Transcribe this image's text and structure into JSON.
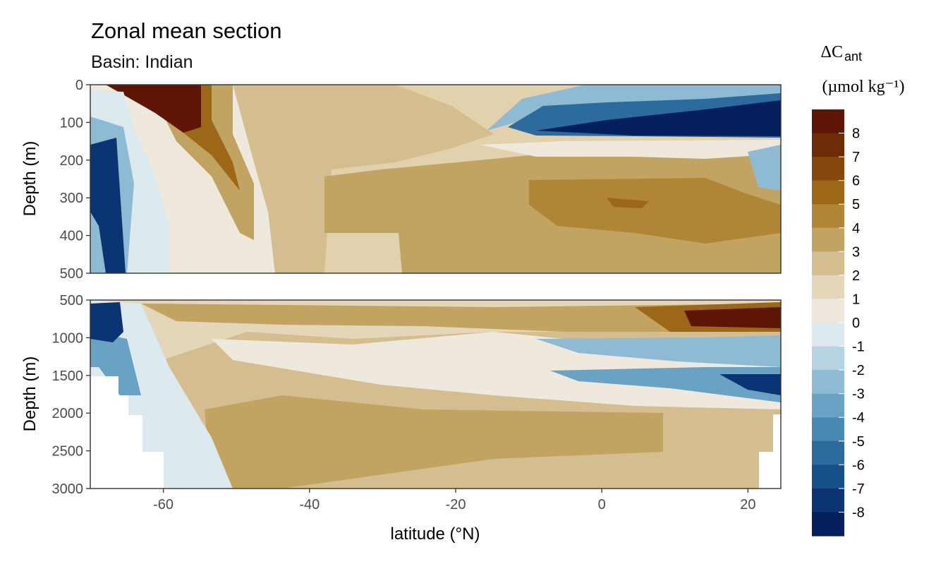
{
  "chart_data": {
    "type": "heatmap",
    "title": "Zonal mean section",
    "subtitle": "Basin: Indian",
    "xlabel": "latitude (°N)",
    "ylabel": "Depth (m)",
    "xlim": [
      -70,
      24.5
    ],
    "x_ticks": [
      -60,
      -40,
      -20,
      0,
      20
    ],
    "x_tick_labels": [
      "-60",
      "-40",
      "-20",
      "0",
      "20"
    ],
    "panels": [
      {
        "name": "upper",
        "ylim": [
          0,
          500
        ],
        "y_ticks": [
          0,
          100,
          200,
          300,
          400,
          500
        ],
        "y_tick_labels": [
          "0",
          "100",
          "200",
          "300",
          "400",
          "500"
        ],
        "features": [
          {
            "lat": [
              -70,
              -54
            ],
            "depth": [
              0,
              200
            ],
            "value": 8.5
          },
          {
            "lat": [
              -62,
              -45
            ],
            "depth": [
              0,
              380
            ],
            "value": 4.5
          },
          {
            "lat": [
              -70,
              -64
            ],
            "depth": [
              120,
              500
            ],
            "value": -8
          },
          {
            "lat": [
              -8,
              24.5
            ],
            "depth": [
              20,
              130
            ],
            "value": -8
          },
          {
            "lat": [
              -30,
              24.5
            ],
            "depth": [
              220,
              500
            ],
            "value": 3.5
          },
          {
            "lat": [
              0,
              22
            ],
            "depth": [
              240,
              440
            ],
            "value": 4.5
          },
          {
            "lat": [
              18,
              24.5
            ],
            "depth": [
              170,
              280
            ],
            "value": -3
          }
        ]
      },
      {
        "name": "lower",
        "ylim": [
          500,
          3000
        ],
        "y_ticks": [
          500,
          1000,
          1500,
          2000,
          2500,
          3000
        ],
        "y_tick_labels": [
          "500",
          "1000",
          "1500",
          "2000",
          "2500",
          "3000"
        ],
        "features": [
          {
            "lat": [
              -70,
              -64
            ],
            "depth": [
              500,
              1000
            ],
            "value": -8
          },
          {
            "lat": [
              10,
              24.5
            ],
            "depth": [
              600,
              950
            ],
            "value": 8
          },
          {
            "lat": [
              -10,
              24.5
            ],
            "depth": [
              950,
              1300
            ],
            "value": -2
          },
          {
            "lat": [
              -5,
              24.5
            ],
            "depth": [
              1400,
              1750
            ],
            "value": -6
          },
          {
            "lat": [
              -52,
              10
            ],
            "depth": [
              1900,
              3000
            ],
            "value": 2.5
          },
          {
            "lat": [
              -66,
              -50
            ],
            "depth": [
              1200,
              3000
            ],
            "value": 0
          }
        ]
      }
    ],
    "colorbar": {
      "title": "ΔC",
      "title_subscript": "ant",
      "units": "(µmol kg⁻¹)",
      "labels": [
        "8",
        "7",
        "6",
        "5",
        "4",
        "3",
        "2",
        "1",
        "0",
        "-1",
        "-2",
        "-3",
        "-4",
        "-5",
        "-6",
        "-7",
        "-8"
      ],
      "colors": [
        "#5e1503",
        "#6e2b06",
        "#86480b",
        "#9c6818",
        "#b08535",
        "#c2a462",
        "#d4bd8f",
        "#e4d6b8",
        "#efe9dd",
        "#dce9ef",
        "#b6d3e2",
        "#8fbad3",
        "#6aa2c3",
        "#4888b2",
        "#2c6c9d",
        "#174f88",
        "#0b3474",
        "#04205c"
      ]
    }
  }
}
